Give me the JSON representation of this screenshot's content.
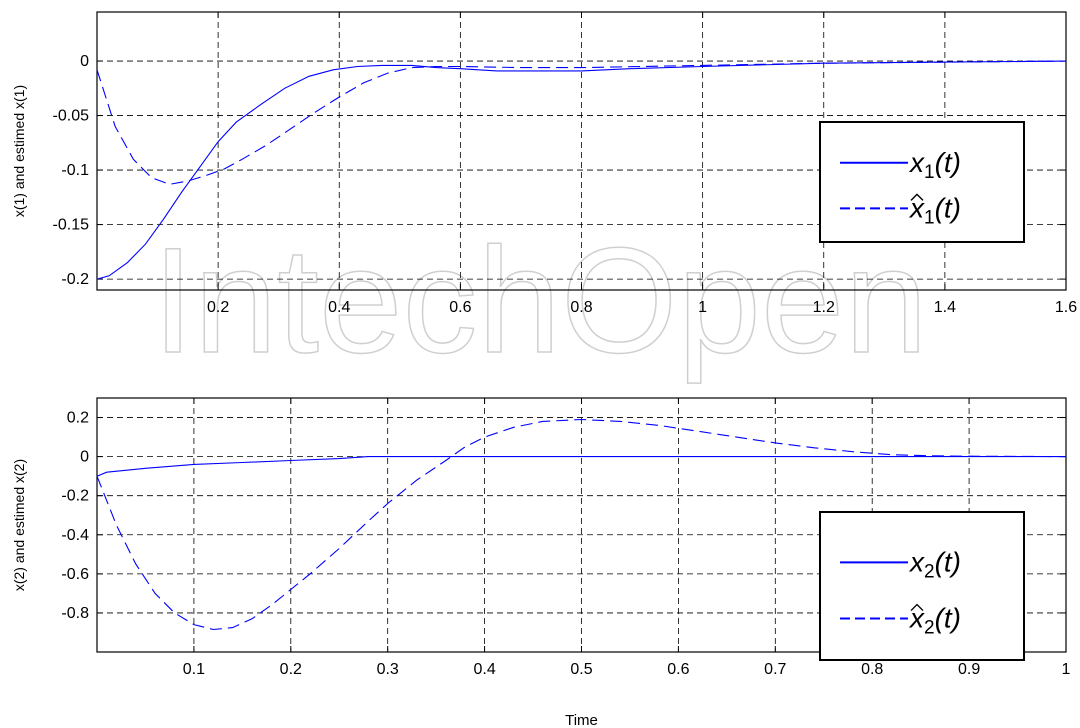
{
  "watermark": "IntechOpen",
  "colors": {
    "line": "#0000ff",
    "axis": "#000000",
    "grid": "#000000",
    "watermark": "#d9d9d9"
  },
  "chart_data": [
    {
      "type": "line",
      "ylabel": "x(1) and estimed x(1)",
      "xlabel": "",
      "xlim": [
        0,
        1.6
      ],
      "ylim": [
        -0.21,
        0.045
      ],
      "xticks": [
        0.2,
        0.4,
        0.6,
        0.8,
        1,
        1.2,
        1.4,
        1.6
      ],
      "xtick_labels": [
        "0.2",
        "0.4",
        "0.6",
        "0.8",
        "1",
        "1.2",
        "1.4",
        "1.6"
      ],
      "yticks": [
        0,
        -0.05,
        -0.1,
        -0.15,
        -0.2
      ],
      "ytick_labels": [
        "0",
        "-0.05",
        "-0.1",
        "-0.15",
        "-0.2"
      ],
      "grid": true,
      "legend_placement": "right",
      "series": [
        {
          "name": "x1(t)",
          "style": "solid",
          "legend": {
            "base": "x",
            "sub": "1",
            "arg": "(t)",
            "hat": false
          },
          "x": [
            0,
            0.02,
            0.05,
            0.08,
            0.11,
            0.14,
            0.17,
            0.2,
            0.23,
            0.27,
            0.31,
            0.35,
            0.39,
            0.43,
            0.47,
            0.52,
            0.56,
            0.6,
            0.66,
            0.72,
            0.8,
            0.88,
            1.0,
            1.2,
            1.4,
            1.6
          ],
          "y": [
            -0.2,
            -0.197,
            -0.185,
            -0.168,
            -0.145,
            -0.12,
            -0.097,
            -0.074,
            -0.056,
            -0.04,
            -0.025,
            -0.014,
            -0.008,
            -0.005,
            -0.004,
            -0.004,
            -0.006,
            -0.007,
            -0.009,
            -0.009,
            -0.009,
            -0.007,
            -0.005,
            -0.002,
            -0.001,
            0
          ]
        },
        {
          "name": "x̂1(t)",
          "style": "dashed",
          "legend": {
            "base": "x",
            "sub": "1",
            "arg": "(t)",
            "hat": true
          },
          "x": [
            0,
            0.03,
            0.06,
            0.09,
            0.12,
            0.15,
            0.18,
            0.21,
            0.24,
            0.28,
            0.32,
            0.36,
            0.4,
            0.44,
            0.48,
            0.52,
            0.56,
            0.6,
            0.7,
            0.8,
            1.0,
            1.2,
            1.4,
            1.6
          ],
          "y": [
            -0.008,
            -0.06,
            -0.09,
            -0.107,
            -0.113,
            -0.11,
            -0.105,
            -0.099,
            -0.09,
            -0.077,
            -0.062,
            -0.047,
            -0.033,
            -0.02,
            -0.011,
            -0.006,
            -0.005,
            -0.005,
            -0.006,
            -0.006,
            -0.004,
            -0.002,
            -0.001,
            0
          ]
        }
      ]
    },
    {
      "type": "line",
      "ylabel": "x(2) and estimed x(2)",
      "xlabel": "Time",
      "xlim": [
        0,
        1
      ],
      "ylim": [
        -1.0,
        0.3
      ],
      "xticks": [
        0.1,
        0.2,
        0.3,
        0.4,
        0.5,
        0.6,
        0.7,
        0.8,
        0.9,
        1
      ],
      "xtick_labels": [
        "0.1",
        "0.2",
        "0.3",
        "0.4",
        "0.5",
        "0.6",
        "0.7",
        "0.8",
        "0.9",
        "1"
      ],
      "yticks": [
        0.2,
        0,
        -0.2,
        -0.4,
        -0.6,
        -0.8
      ],
      "ytick_labels": [
        "0.2",
        "0",
        "-0.2",
        "-0.4",
        "-0.6",
        "-0.8"
      ],
      "grid": true,
      "legend_placement": "right",
      "series": [
        {
          "name": "x2(t)",
          "style": "solid",
          "legend": {
            "base": "x",
            "sub": "2",
            "arg": "(t)",
            "hat": false
          },
          "x": [
            0,
            0.01,
            0.05,
            0.1,
            0.15,
            0.2,
            0.25,
            0.28,
            0.3,
            0.4,
            0.5,
            0.6,
            0.7,
            0.8,
            0.9,
            1.0
          ],
          "y": [
            -0.1,
            -0.08,
            -0.06,
            -0.04,
            -0.03,
            -0.02,
            -0.01,
            0,
            0,
            0,
            0,
            0,
            0,
            0,
            0,
            0
          ]
        },
        {
          "name": "x̂2(t)",
          "style": "dashed",
          "legend": {
            "base": "x",
            "sub": "2",
            "arg": "(t)",
            "hat": true
          },
          "x": [
            0,
            0.02,
            0.04,
            0.06,
            0.08,
            0.1,
            0.12,
            0.14,
            0.16,
            0.18,
            0.2,
            0.22,
            0.25,
            0.28,
            0.3,
            0.33,
            0.36,
            0.38,
            0.4,
            0.43,
            0.46,
            0.5,
            0.54,
            0.58,
            0.62,
            0.66,
            0.7,
            0.74,
            0.78,
            0.82,
            0.86,
            0.9,
            1.0
          ],
          "y": [
            -0.1,
            -0.35,
            -0.55,
            -0.7,
            -0.8,
            -0.86,
            -0.885,
            -0.875,
            -0.83,
            -0.76,
            -0.68,
            -0.6,
            -0.47,
            -0.33,
            -0.24,
            -0.12,
            -0.02,
            0.05,
            0.1,
            0.15,
            0.18,
            0.19,
            0.18,
            0.16,
            0.13,
            0.1,
            0.07,
            0.045,
            0.025,
            0.01,
            0.004,
            0.002,
            0
          ]
        }
      ]
    }
  ]
}
